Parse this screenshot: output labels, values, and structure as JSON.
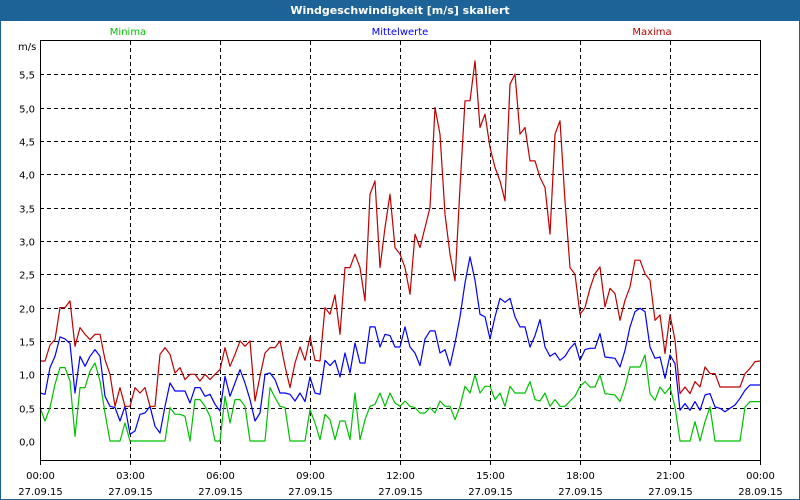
{
  "title": "Windgeschwindigkeit [m/s] skaliert",
  "chart_data": {
    "type": "line",
    "title": "Windgeschwindigkeit [m/s] skaliert",
    "ylabel": "m/s",
    "xlabel": "",
    "ylim": [
      0,
      5.5
    ],
    "yticks": [
      "0,0",
      "0,5",
      "1,0",
      "1,5",
      "2,0",
      "2,5",
      "3,0",
      "3,5",
      "4,0",
      "4,5",
      "5,0",
      "5,5"
    ],
    "xticks": [
      {
        "time": "00:00",
        "date": "27.09.15"
      },
      {
        "time": "03:00",
        "date": "27.09.15"
      },
      {
        "time": "06:00",
        "date": "27.09.15"
      },
      {
        "time": "09:00",
        "date": "27.09.15"
      },
      {
        "time": "12:00",
        "date": "27.09.15"
      },
      {
        "time": "15:00",
        "date": "27.09.15"
      },
      {
        "time": "18:00",
        "date": "27.09.15"
      },
      {
        "time": "21:00",
        "date": "27.09.15"
      },
      {
        "time": "00:00",
        "date": "28.09.15"
      }
    ],
    "x_range_hours": [
      0,
      24
    ],
    "step_minutes": 10,
    "grid": true,
    "series": [
      {
        "name": "Minima",
        "color": "#00c000",
        "legend_position": "top-left",
        "values": [
          0.5,
          0.3,
          0.5,
          0.85,
          1.1,
          1.1,
          0.9,
          0.07,
          0.8,
          0.8,
          1.05,
          1.17,
          0.9,
          0.42,
          0,
          0,
          0,
          0.27,
          0,
          0,
          0,
          0,
          0,
          0,
          0,
          0,
          0.5,
          0.4,
          0.4,
          0.37,
          0,
          0.62,
          0.62,
          0.52,
          0.37,
          0,
          0,
          0.67,
          0.27,
          0.62,
          0.62,
          0.52,
          0,
          0,
          0,
          0,
          0.8,
          0.65,
          0.52,
          0.5,
          0,
          0,
          0,
          0,
          0.47,
          0.27,
          0.02,
          0.4,
          0.32,
          0.02,
          0.3,
          0.3,
          0.02,
          0.72,
          0.02,
          0.32,
          0.52,
          0.55,
          0.72,
          0.52,
          0.72,
          0.57,
          0.52,
          0.6,
          0.52,
          0.5,
          0.42,
          0.42,
          0.5,
          0.42,
          0.6,
          0.52,
          0.52,
          0.32,
          0.52,
          0.82,
          0.72,
          0.99,
          0.72,
          0.82,
          0.82,
          0.62,
          0.72,
          0.52,
          0.82,
          0.72,
          0.72,
          0.72,
          0.89,
          0.62,
          0.6,
          0.72,
          0.52,
          0.62,
          0.52,
          0.52,
          0.6,
          0.67,
          0.82,
          0.89,
          0.81,
          0.81,
          0.99,
          0.71,
          0.7,
          0.69,
          0.59,
          0.81,
          1.11,
          1.11,
          1.11,
          1.29,
          0.71,
          0.61,
          0.81,
          0.71,
          0.81,
          0.51,
          0,
          0,
          0,
          0.29,
          0,
          0.29,
          0.51,
          0,
          0,
          0,
          0,
          0,
          0,
          0.51,
          0.59,
          0.59,
          0.59
        ]
      },
      {
        "name": "Mittelwerte",
        "color": "#0000ff",
        "legend_position": "top-center",
        "values": [
          0.72,
          0.7,
          1.1,
          1.27,
          1.56,
          1.53,
          1.46,
          0.72,
          1.27,
          1.12,
          1.27,
          1.37,
          1.27,
          0.67,
          0.52,
          0.5,
          0.3,
          0.52,
          0.1,
          0.15,
          0.4,
          0.42,
          0.52,
          0.22,
          0.12,
          0.52,
          0.87,
          0.75,
          0.75,
          0.75,
          0.57,
          0.8,
          0.8,
          0.67,
          0.7,
          0.55,
          0.45,
          0.97,
          0.67,
          0.87,
          1.07,
          0.87,
          0.62,
          0.3,
          0.42,
          1.0,
          1.02,
          0.92,
          0.72,
          0.72,
          0.7,
          0.6,
          0.72,
          0.59,
          0.96,
          0.72,
          0.7,
          1.21,
          1.13,
          1.21,
          0.96,
          1.32,
          1.02,
          1.47,
          1.17,
          1.17,
          1.71,
          1.71,
          1.41,
          1.6,
          1.58,
          1.41,
          1.41,
          1.71,
          1.41,
          1.32,
          1.13,
          1.53,
          1.65,
          1.65,
          1.32,
          1.37,
          1.13,
          1.47,
          1.86,
          2.37,
          2.76,
          2.41,
          1.9,
          1.86,
          1.53,
          1.86,
          2.14,
          2.08,
          2.14,
          1.86,
          1.71,
          1.71,
          1.41,
          1.58,
          1.82,
          1.41,
          1.27,
          1.32,
          1.21,
          1.27,
          1.39,
          1.47,
          1.21,
          1.37,
          1.39,
          1.39,
          1.61,
          1.26,
          1.25,
          1.24,
          1.11,
          1.36,
          1.71,
          1.94,
          1.99,
          1.94,
          1.41,
          1.24,
          1.26,
          0.94,
          1.29,
          1.16,
          0.46,
          0.56,
          0.46,
          0.59,
          0.46,
          0.69,
          0.71,
          0.51,
          0.49,
          0.44,
          0.49,
          0.54,
          0.64,
          0.76,
          0.84,
          0.84,
          0.84
        ]
      },
      {
        "name": "Maxima",
        "color": "#c00000",
        "legend_position": "top-right",
        "values": [
          1.2,
          1.2,
          1.44,
          1.52,
          2.0,
          2.0,
          2.1,
          1.42,
          1.7,
          1.6,
          1.52,
          1.6,
          1.6,
          1.22,
          1.0,
          0.52,
          0.8,
          0.52,
          0.52,
          0.8,
          0.72,
          0.8,
          0.52,
          0.52,
          1.3,
          1.4,
          1.3,
          1.02,
          1.1,
          0.92,
          1.0,
          1.0,
          0.9,
          1.0,
          0.92,
          1.0,
          1.07,
          1.4,
          1.12,
          1.3,
          1.5,
          1.42,
          1.5,
          0.6,
          0.97,
          1.32,
          1.4,
          1.4,
          1.5,
          1.12,
          0.8,
          1.17,
          1.41,
          1.21,
          1.56,
          1.21,
          1.2,
          2.0,
          1.9,
          2.19,
          1.6,
          2.6,
          2.6,
          2.8,
          2.6,
          2.1,
          3.7,
          3.9,
          2.6,
          3.2,
          3.7,
          2.9,
          2.8,
          2.6,
          2.2,
          3.1,
          2.9,
          3.2,
          3.5,
          5.0,
          4.6,
          3.4,
          2.8,
          2.4,
          3.8,
          5.1,
          5.1,
          5.7,
          4.7,
          4.9,
          4.4,
          4.1,
          3.9,
          3.6,
          5.35,
          5.5,
          4.6,
          4.7,
          4.2,
          4.2,
          3.95,
          3.8,
          3.1,
          4.6,
          4.8,
          3.6,
          2.6,
          2.5,
          1.9,
          2.0,
          2.29,
          2.51,
          2.61,
          2.01,
          2.29,
          2.21,
          1.81,
          2.11,
          2.31,
          2.71,
          2.71,
          2.51,
          2.41,
          1.81,
          1.89,
          1.31,
          1.89,
          1.51,
          0.71,
          0.81,
          0.71,
          0.89,
          0.81,
          1.11,
          1.01,
          1.01,
          0.81,
          0.81,
          0.81,
          0.81,
          0.81,
          1.01,
          1.09,
          1.19,
          1.2
        ]
      }
    ]
  }
}
